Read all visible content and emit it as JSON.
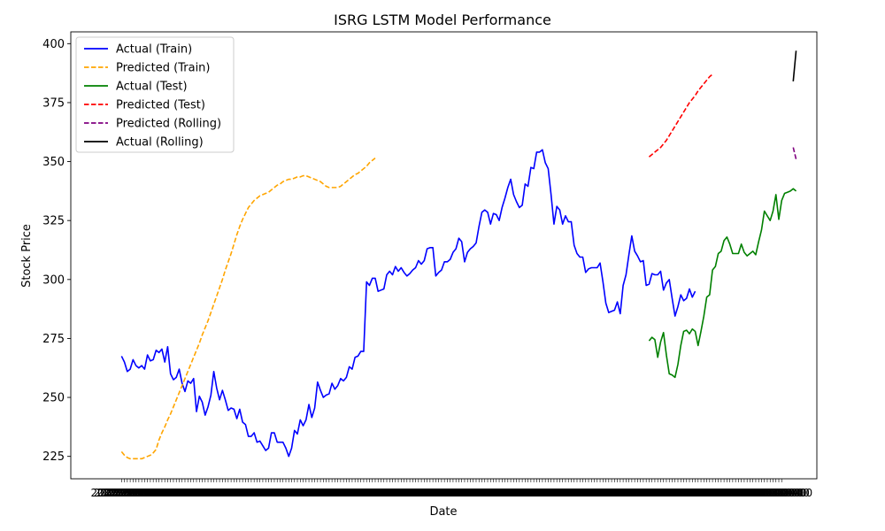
{
  "chart_data": {
    "type": "line",
    "title": "ISRG LSTM Model Performance",
    "xlabel": "Date",
    "ylabel": "Stock Price",
    "ylim": [
      215.5,
      405
    ],
    "yticks": [
      225,
      250,
      275,
      300,
      325,
      350,
      375,
      400
    ],
    "xlim": [
      -17.6,
      241.2
    ],
    "x_tick_count": 230,
    "x_tick_label_text": "2023-10-00",
    "grid": false,
    "legend_position": "top-left",
    "series": [
      {
        "name": "Actual (Train)",
        "color": "#0000ff",
        "style": "solid",
        "x_start": 0,
        "values": [
          267.5,
          265,
          261,
          262,
          266,
          263.5,
          262.5,
          263.5,
          262,
          268,
          265.5,
          266,
          270,
          269,
          270.5,
          265,
          271.5,
          260,
          257.5,
          258.5,
          262,
          256,
          252.5,
          257,
          256,
          258,
          244,
          250.5,
          248,
          242.5,
          246,
          251,
          261,
          254,
          249,
          253,
          249,
          244.5,
          245.5,
          245,
          241,
          245,
          239.5,
          238.5,
          233.5,
          233.5,
          235,
          231,
          231.5,
          229.5,
          227.5,
          228.5,
          235,
          235,
          231,
          231,
          231,
          228.5,
          225,
          228.5,
          236,
          234.5,
          240.5,
          238,
          240.5,
          247,
          241.5,
          245.5,
          256.5,
          253,
          250,
          251,
          251.5,
          256,
          253.5,
          255,
          258,
          257,
          258.5,
          263,
          262,
          267,
          267.5,
          269.5,
          269.5,
          299,
          297.5,
          300.5,
          300.5,
          295,
          295.5,
          296,
          302,
          303.5,
          302,
          305.5,
          303.5,
          305,
          303,
          301.5,
          302.5,
          304,
          305,
          308,
          306.5,
          308,
          313,
          313.5,
          313.5,
          301.5,
          303,
          304,
          307.5,
          307.5,
          308.5,
          311.5,
          313,
          317.5,
          316,
          307.5,
          311.5,
          313,
          314,
          315.5,
          322.5,
          328.5,
          329.5,
          328.5,
          323.5,
          328,
          327.5,
          325,
          330.5,
          334.5,
          339,
          342.5,
          336,
          333,
          330.5,
          331.5,
          340.5,
          339.5,
          347.5,
          347,
          354,
          354,
          355,
          349.5,
          347,
          336,
          323.5,
          331,
          329.5,
          323.5,
          327,
          324.5,
          324.5,
          314.5,
          311,
          309.5,
          309.5,
          303,
          304.5,
          305,
          305,
          305,
          307,
          299,
          290,
          286,
          286.5,
          287,
          290.5,
          285.5,
          297.5,
          302,
          310.5,
          318.5,
          312,
          310,
          307.5,
          308,
          297.5,
          298,
          302.5,
          302,
          302,
          303.5,
          295.5,
          298.5,
          300,
          292,
          284.5,
          288.5,
          293.5,
          291,
          292,
          296,
          292.5,
          295
        ]
      },
      {
        "name": "Predicted (Train)",
        "color": "#ffa500",
        "style": "dashed",
        "x_start": 0,
        "values": [
          227,
          225.5,
          224.5,
          224,
          224,
          224,
          224,
          224,
          224.5,
          225,
          225.5,
          226.5,
          228,
          232,
          235,
          237.5,
          240.5,
          243,
          246,
          249,
          252,
          255,
          258,
          261,
          264,
          267,
          270,
          273,
          276.5,
          279.5,
          282.5,
          286,
          289.5,
          293,
          296.5,
          300,
          304,
          307.5,
          311,
          315,
          319,
          322.5,
          325.5,
          328,
          330.5,
          332,
          333.5,
          334.5,
          335.5,
          336,
          336.5,
          337,
          338,
          339,
          340,
          340.5,
          341.5,
          342,
          342.5,
          342.5,
          343,
          343.5,
          343.5,
          344,
          344,
          343.5,
          343,
          342.5,
          342,
          341.5,
          340.5,
          339.5,
          339,
          339,
          339,
          339,
          339.5,
          340.5,
          341.5,
          342.5,
          343.5,
          344.5,
          345,
          346,
          347,
          348,
          349.5,
          350.5,
          351.5
        ]
      },
      {
        "name": "Actual (Test)",
        "color": "#008000",
        "style": "solid",
        "x_start": 183,
        "values": [
          274,
          275.5,
          274.5,
          267,
          273.5,
          277.5,
          268,
          260,
          259.5,
          258.5,
          264,
          272,
          278,
          278.5,
          277,
          279,
          278,
          272,
          278,
          284.5,
          292.5,
          293.5,
          304,
          305.5,
          311,
          312,
          316.5,
          318,
          315,
          311,
          311,
          311,
          315,
          311.5,
          310,
          311,
          312,
          310.5,
          316,
          321,
          329,
          327,
          325,
          329,
          336,
          325.5,
          333.5,
          336.5,
          337,
          337.5,
          338.5,
          337.5
        ]
      },
      {
        "name": "Predicted (Test)",
        "color": "#ff0000",
        "style": "dashed",
        "x_start": 183,
        "values": [
          352,
          353,
          354,
          355,
          356,
          357.5,
          359,
          361,
          363,
          365,
          367,
          369,
          371,
          373,
          375,
          376.5,
          378,
          380,
          381.5,
          383,
          384.5,
          386,
          387
        ]
      },
      {
        "name": "Predicted (Rolling)",
        "color": "#800080",
        "style": "dashed",
        "x_start": 233,
        "values": [
          356,
          351
        ]
      },
      {
        "name": "Actual (Rolling)",
        "color": "#000000",
        "style": "solid",
        "x_start": 233,
        "values": [
          384,
          397
        ]
      }
    ]
  }
}
